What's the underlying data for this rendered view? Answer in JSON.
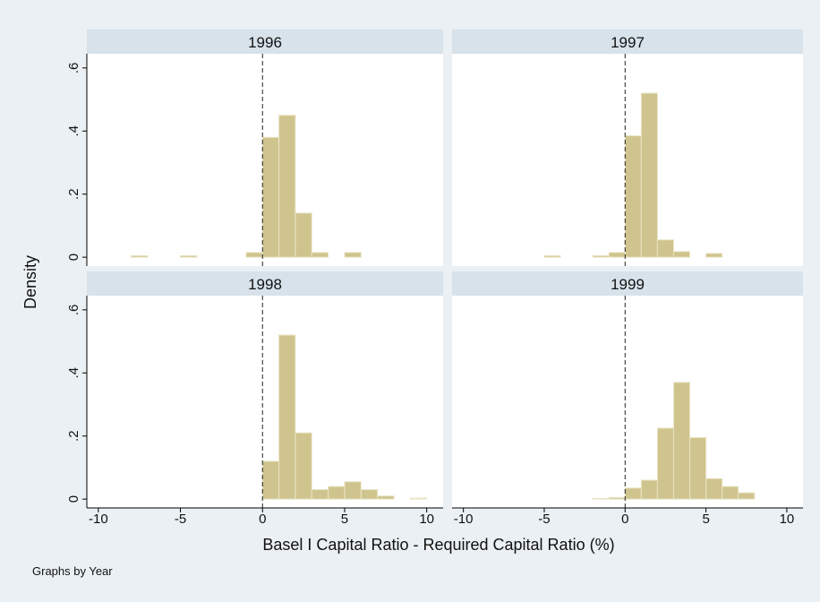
{
  "y_label": "Density",
  "x_label": "Basel I Capital Ratio - Required Capital Ratio (%)",
  "note": "Graphs by Year",
  "chart_data": [
    {
      "type": "histogram",
      "title": "1996",
      "color": "#cfc48e",
      "bins": [
        -10,
        -9,
        -8,
        -7,
        -6,
        -5,
        -4,
        -3,
        -2,
        -1,
        0,
        1,
        2,
        3,
        4,
        5,
        6,
        7,
        8,
        9,
        10
      ],
      "values": [
        0,
        0,
        0.005,
        0,
        0,
        0.005,
        0,
        0,
        0,
        0.015,
        0.38,
        0.45,
        0.14,
        0.015,
        0,
        0.015,
        0,
        0,
        0,
        0
      ],
      "xlim": [
        -10.7,
        11
      ],
      "ylim": [
        -0.028,
        0.645
      ],
      "reference_line": 0,
      "yticks": [
        0,
        {
          "value": 0.2,
          "label": ".2"
        },
        {
          "value": 0.4,
          "label": ".4"
        },
        {
          "value": 0.6,
          "label": ".6"
        }
      ]
    },
    {
      "type": "histogram",
      "title": "1997",
      "color": "#cfc48e",
      "bins": [
        -10,
        -9,
        -8,
        -7,
        -6,
        -5,
        -4,
        -3,
        -2,
        -1,
        0,
        1,
        2,
        3,
        4,
        5,
        6,
        7,
        8,
        9,
        10
      ],
      "values": [
        0,
        0,
        0,
        0,
        0,
        0.005,
        0,
        0,
        0.005,
        0.015,
        0.385,
        0.52,
        0.055,
        0.018,
        0,
        0.012,
        0,
        0,
        0,
        0
      ],
      "xlim": [
        -10.7,
        11
      ],
      "ylim": [
        -0.028,
        0.645
      ],
      "reference_line": 0
    },
    {
      "type": "histogram",
      "title": "1998",
      "color": "#cfc48e",
      "bins": [
        -10,
        -9,
        -8,
        -7,
        -6,
        -5,
        -4,
        -3,
        -2,
        -1,
        0,
        1,
        2,
        3,
        4,
        5,
        6,
        7,
        8,
        9,
        10
      ],
      "values": [
        0,
        0,
        0,
        0,
        0,
        0,
        0,
        0,
        0,
        0,
        0.12,
        0.52,
        0.21,
        0.03,
        0.04,
        0.055,
        0.03,
        0.01,
        0,
        0.003
      ],
      "xlim": [
        -10.7,
        11
      ],
      "ylim": [
        -0.028,
        0.645
      ],
      "reference_line": 0,
      "xticks": [
        -10,
        -5,
        0,
        5,
        10
      ],
      "yticks": [
        0,
        {
          "value": 0.2,
          "label": ".2"
        },
        {
          "value": 0.4,
          "label": ".4"
        },
        {
          "value": 0.6,
          "label": ".6"
        }
      ]
    },
    {
      "type": "histogram",
      "title": "1999",
      "color": "#cfc48e",
      "bins": [
        -10,
        -9,
        -8,
        -7,
        -6,
        -5,
        -4,
        -3,
        -2,
        -1,
        0,
        1,
        2,
        3,
        4,
        5,
        6,
        7,
        8,
        9,
        10
      ],
      "values": [
        0,
        0,
        0,
        0,
        0,
        0,
        0,
        0,
        0.002,
        0.005,
        0.035,
        0.06,
        0.225,
        0.37,
        0.195,
        0.065,
        0.04,
        0.02,
        0,
        0
      ],
      "xlim": [
        -10.7,
        11
      ],
      "ylim": [
        -0.028,
        0.645
      ],
      "reference_line": 0,
      "xticks": [
        -10,
        -5,
        0,
        5,
        10
      ]
    }
  ]
}
